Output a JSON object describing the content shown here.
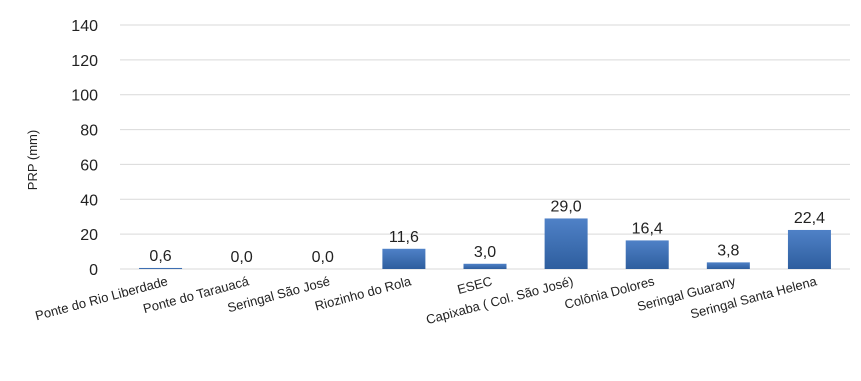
{
  "chart_data": {
    "type": "bar",
    "ylabel": "PRP (mm)",
    "ylim": [
      0,
      140
    ],
    "yticks": [
      0,
      20,
      40,
      60,
      80,
      100,
      120,
      140
    ],
    "grid": "horizontal",
    "categories": [
      "Ponte do Rio Liberdade",
      "Ponte do Tarauacá",
      "Seringal São José",
      "Riozinho do Rola",
      "ESEC",
      "Capixaba ( Col. São José)",
      "Colônia Dolores",
      "Seringal Guarany",
      "Seringal Santa Helena"
    ],
    "values": [
      0.6,
      0.0,
      0.0,
      11.6,
      3.0,
      29.0,
      16.4,
      3.8,
      22.4
    ],
    "data_labels": [
      "0,6",
      "0,0",
      "0,0",
      "11,6",
      "3,0",
      "29,0",
      "16,4",
      "3,8",
      "22,4"
    ],
    "colors": {
      "bar_top": "#4f81c7",
      "bar_bottom": "#2e5e9e",
      "grid": "#d9d9d9"
    }
  }
}
